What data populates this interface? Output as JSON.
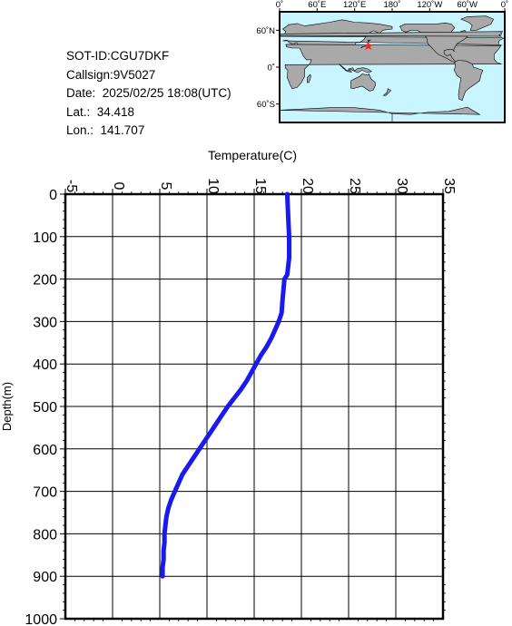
{
  "info": {
    "sot_id": "SOT-ID:CGU7DKF",
    "callsign": "Callsign:9V5027",
    "date": "Date:  2025/02/25 18:08(UTC)",
    "lat": "Lat.:  34.418",
    "lon": "Lon.:  141.707"
  },
  "map": {
    "lon_labels": [
      "0˚",
      "60˚E",
      "120˚E",
      "180˚",
      "120˚W",
      "60˚W",
      "0˚"
    ],
    "lat_labels": [
      "60˚N",
      "0˚",
      "60˚S"
    ],
    "ocean_color": "#c8f5ff",
    "land_color": "#a9a9a9",
    "marker_color": "#ff2020",
    "marker": {
      "lat": 34.418,
      "lon": 141.707
    }
  },
  "chart_data": {
    "type": "line",
    "title": "",
    "xlabel": "Temperature(C)",
    "ylabel": "Depth(m)",
    "xlim": [
      -5,
      35
    ],
    "ylim": [
      0,
      1000
    ],
    "x_ticks": [
      -5,
      0,
      5,
      10,
      15,
      20,
      25,
      30,
      35
    ],
    "y_ticks": [
      0,
      100,
      200,
      300,
      400,
      500,
      600,
      700,
      800,
      900,
      1000
    ],
    "y_inverted": true,
    "grid": true,
    "line_color": "#1a1aee",
    "series": [
      {
        "points": [
          [
            18.5,
            0
          ],
          [
            18.6,
            50
          ],
          [
            18.7,
            100
          ],
          [
            18.7,
            150
          ],
          [
            18.5,
            190
          ],
          [
            18.2,
            200
          ],
          [
            18.0,
            250
          ],
          [
            17.9,
            280
          ],
          [
            17.6,
            300
          ],
          [
            17.2,
            320
          ],
          [
            16.8,
            340
          ],
          [
            16.3,
            360
          ],
          [
            15.7,
            380
          ],
          [
            15.2,
            400
          ],
          [
            14.7,
            420
          ],
          [
            14.2,
            440
          ],
          [
            13.6,
            460
          ],
          [
            12.9,
            480
          ],
          [
            12.2,
            500
          ],
          [
            11.6,
            520
          ],
          [
            11.0,
            540
          ],
          [
            10.4,
            560
          ],
          [
            9.8,
            580
          ],
          [
            9.2,
            600
          ],
          [
            8.6,
            620
          ],
          [
            8.0,
            640
          ],
          [
            7.4,
            660
          ],
          [
            7.0,
            680
          ],
          [
            6.6,
            700
          ],
          [
            6.2,
            720
          ],
          [
            5.9,
            740
          ],
          [
            5.7,
            760
          ],
          [
            5.6,
            780
          ],
          [
            5.5,
            800
          ],
          [
            5.5,
            820
          ],
          [
            5.4,
            840
          ],
          [
            5.4,
            860
          ],
          [
            5.3,
            880
          ],
          [
            5.3,
            900
          ]
        ]
      }
    ]
  }
}
